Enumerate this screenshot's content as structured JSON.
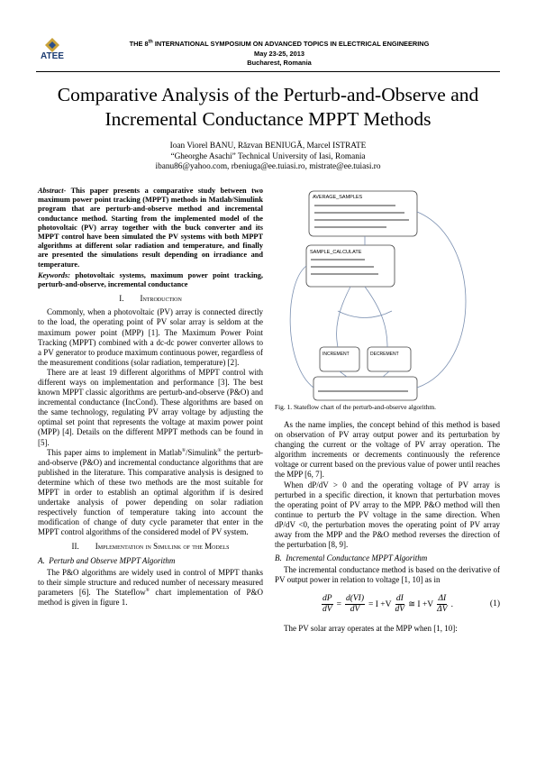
{
  "header": {
    "logo": "ATEE",
    "line1_pre": "THE 8",
    "line1_sup": "th",
    "line1_post": " INTERNATIONAL SYMPOSIUM ON ADVANCED TOPICS IN ELECTRICAL ENGINEERING",
    "line2": "May 23-25, 2013",
    "line3": "Bucharest, Romania"
  },
  "title": "Comparative Analysis of the Perturb-and-Observe and Incremental Conductance MPPT Methods",
  "authors": {
    "names": "Ioan Viorel BANU, Răzvan BENIUGĂ, Marcel ISTRATE",
    "affiliation": "“Gheorghe Asachi” Technical University of Iasi, Romania",
    "emails": "ibanu86@yahoo.com, rbeniuga@ee.tuiasi.ro, mistrate@ee.tuiasi.ro"
  },
  "abstract": {
    "label": "Abstract-",
    "text": " This paper presents a comparative study between two maximum power point tracking (MPPT) methods in Matlab/Simulink program that are perturb-and-observe method and incremental conductance method. Starting from the implemented model of the photovoltaic (PV) array together with the buck converter and its MPPT control have been simulated the PV systems with both MPPT algorithms at different solar radiation and temperature, and finally are presented the simulations result depending on irradiance and temperature."
  },
  "keywords": {
    "label": "Keywords:",
    "text": " photovoltaic systems, maximum power point tracking, perturb-and-observe, incremental conductance"
  },
  "section1": {
    "number": "I.",
    "title": "Introduction",
    "p1": "Commonly, when a photovoltaic (PV) array is connected directly to the load, the operating point of PV solar array is seldom at the maximum power point (MPP) [1]. The Maximum Power Point Tracking (MPPT) combined with a dc-dc power converter allows to a PV generator to produce maximum continuous power, regardless of the measurement conditions (solar radiation, temperature) [2].",
    "p2": "There are at least 19 different algorithms of MPPT control with different ways on implementation and performance [3]. The best known MPPT classic algorithms are perturb-and-observe (P&O) and incremental conductance (IncCond). These algorithms are based on the same technology, regulating PV array voltage by adjusting the optimal set point that represents the voltage at maxim power point (MPP) [4]. Details on the different MPPT methods can be found in [5].",
    "p3": [
      "This paper aims to implement in Matlab",
      "®",
      "/Simulink",
      "®",
      " the perturb-and-observe (P&O) and incremental conductance algorithms that are published in the literature. This comparative analysis is designed to determine which of these two methods are the most suitable for MPPT in order to establish an optimal algorithm if is desired undertake analysis of power depending on solar radiation respectively function of temperature taking into account the modification of change of duty cycle parameter that enter in the MPPT control algorithms of the considered model of PV system."
    ]
  },
  "section2": {
    "number": "II.",
    "title": "Implementation in Simulink of the Models",
    "subA": {
      "number": "A.",
      "title": "Perturb and Observe MPPT Algorithm",
      "p1": [
        "The P&O algorithms are widely used in control of MPPT thanks to their simple structure and reduced number of necessary measured parameters [6]. The Stateflow",
        "®",
        " chart implementation of P&O method is given in figure 1."
      ],
      "figure": {
        "nodes": [
          "AVERAGE_SAMPLES",
          "SAMPLE_CALCULATE",
          "INCREMENT",
          "DECREMENT"
        ],
        "caption": "Fig. 1. Stateflow chart of the perturb-and-observe algorithm."
      },
      "p2": "As the name implies, the concept behind of this method is based on observation of PV array output power and its perturbation by changing the current or the voltage of PV array operation. The algorithm increments or decrements continuously the reference voltage or current based on the previous value of power until reaches the MPP [6, 7].",
      "p3": "When dP/dV > 0 and the operating voltage of PV array is perturbed in a specific direction, it known that perturbation moves the operating point of PV array to the MPP. P&O method will then continue to perturb the PV voltage in the same direction. When dP/dV <0, the perturbation moves the operating point of PV array away from the MPP and the P&O method reverses the direction of the perturbation [8, 9]."
    },
    "subB": {
      "number": "B.",
      "title": "Incremental Conductance MPPT Algorithm",
      "p1": "The incremental conductance method is based on the derivative of PV output power in relation to voltage [1, 10] as in",
      "equation": {
        "parts": [
          {
            "num": "dP",
            "den": "dV"
          },
          {
            "text": "="
          },
          {
            "num": "d(VI)",
            "den": "dV"
          },
          {
            "text": "= I +V"
          },
          {
            "num": "dI",
            "den": "dV"
          },
          {
            "text": "≅ I +V"
          },
          {
            "num": "ΔI",
            "den": "ΔV"
          },
          {
            "text": "."
          }
        ],
        "number": "(1)"
      },
      "p2": "The PV solar array operates at the MPP when [1, 10]:"
    }
  }
}
